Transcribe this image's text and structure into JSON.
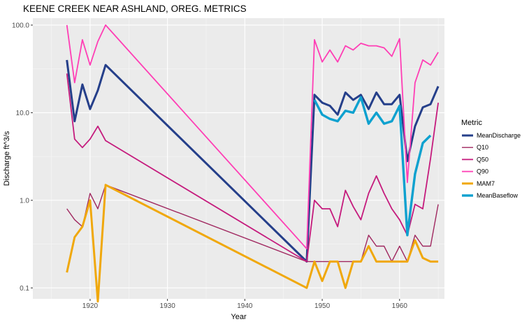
{
  "chart_data": {
    "type": "line",
    "title": "KEENE CREEK NEAR ASHLAND, OREG.  METRICS",
    "xlabel": "Year",
    "ylabel": "Discharge ft^3/s",
    "y_scale": "log10",
    "xlim": [
      1912.6,
      1965.8
    ],
    "ylim": [
      0.075,
      120
    ],
    "x_ticks": [
      1920,
      1930,
      1940,
      1950,
      1960
    ],
    "y_ticks": [
      0.1,
      1.0,
      10.0,
      100.0
    ],
    "x_tick_labels": [
      "1920",
      "1930",
      "1940",
      "1950",
      "1960"
    ],
    "y_tick_labels": [
      "0.1",
      "1.0",
      "10.0",
      "100.0"
    ],
    "grid": true,
    "legend": {
      "title": "Metric",
      "position": "right"
    },
    "series": [
      {
        "name": "Q90",
        "color": "#ff3eb5",
        "width": 1.8,
        "x": [
          1917,
          1918,
          1919,
          1920,
          1921,
          1922,
          1948,
          1949,
          1950,
          1951,
          1952,
          1953,
          1954,
          1955,
          1956,
          1957,
          1958,
          1959,
          1960,
          1961,
          1962,
          1963,
          1964,
          1965
        ],
        "y": [
          100,
          22,
          68,
          35,
          65,
          100,
          0.28,
          68,
          38,
          52,
          38,
          58,
          52,
          62,
          58,
          58,
          55,
          44,
          70,
          1.6,
          22,
          40,
          35,
          49
        ]
      },
      {
        "name": "Q50",
        "color": "#c51b7d",
        "width": 1.8,
        "x": [
          1917,
          1918,
          1919,
          1920,
          1921,
          1922,
          1948,
          1949,
          1950,
          1951,
          1952,
          1953,
          1954,
          1955,
          1956,
          1957,
          1958,
          1959,
          1960,
          1961,
          1962,
          1963,
          1964,
          1965
        ],
        "y": [
          28,
          5,
          4,
          5,
          7,
          4.8,
          0.2,
          1,
          0.8,
          0.8,
          0.5,
          1.3,
          0.85,
          0.6,
          1.2,
          1.9,
          1.2,
          0.8,
          0.6,
          0.4,
          0.9,
          0.8,
          3,
          13
        ]
      },
      {
        "name": "Q10",
        "color": "#a02860",
        "width": 1.4,
        "x": [
          1917,
          1918,
          1919,
          1920,
          1921,
          1922,
          1948,
          1949,
          1950,
          1951,
          1952,
          1953,
          1954,
          1955,
          1956,
          1957,
          1958,
          1959,
          1960,
          1961,
          1962,
          1963,
          1964,
          1965
        ],
        "y": [
          0.8,
          0.6,
          0.5,
          1.2,
          0.8,
          1.5,
          0.2,
          0.2,
          0.2,
          0.2,
          0.2,
          0.2,
          0.2,
          0.2,
          0.4,
          0.3,
          0.3,
          0.2,
          0.3,
          0.2,
          0.4,
          0.3,
          0.3,
          0.9
        ]
      },
      {
        "name": "MeanDischarge",
        "color": "#253f8a",
        "width": 3,
        "x": [
          1917,
          1918,
          1919,
          1920,
          1921,
          1922,
          1948,
          1949,
          1950,
          1951,
          1952,
          1953,
          1954,
          1955,
          1956,
          1957,
          1958,
          1959,
          1960,
          1961,
          1962,
          1963,
          1964,
          1965
        ],
        "y": [
          40,
          8,
          21,
          11,
          18,
          35,
          0.2,
          16,
          13,
          12,
          9.5,
          17,
          14,
          16,
          11,
          17,
          12.5,
          12.5,
          16,
          2.8,
          7,
          11.5,
          12.5,
          20
        ]
      },
      {
        "name": "MAM7",
        "color": "#f0a80c",
        "width": 3,
        "x": [
          1917,
          1918,
          1919,
          1920,
          1921,
          1922,
          1948,
          1949,
          1950,
          1951,
          1952,
          1953,
          1954,
          1955,
          1956,
          1957,
          1958,
          1959,
          1960,
          1961,
          1962,
          1963,
          1964,
          1965
        ],
        "y": [
          0.15,
          0.38,
          0.5,
          1.0,
          0.07,
          1.5,
          0.1,
          0.2,
          0.12,
          0.2,
          0.2,
          0.1,
          0.2,
          0.2,
          0.3,
          0.2,
          0.2,
          0.2,
          0.2,
          0.2,
          0.35,
          0.22,
          0.2,
          0.2
        ]
      },
      {
        "name": "MeanBaseflow",
        "color": "#0ea1cf",
        "width": 3.4,
        "x": [
          1949,
          1950,
          1951,
          1952,
          1953,
          1954,
          1955,
          1956,
          1957,
          1958,
          1959,
          1960,
          1961,
          1962,
          1963,
          1964
        ],
        "y": [
          14,
          9.5,
          8.5,
          8,
          10.5,
          10,
          15,
          7.5,
          10,
          7.5,
          8,
          12,
          0.4,
          2,
          4.5,
          5.5
        ]
      }
    ],
    "legend_order": [
      "MeanDischarge",
      "Q10",
      "Q50",
      "Q90",
      "MAM7",
      "MeanBaseflow"
    ]
  }
}
